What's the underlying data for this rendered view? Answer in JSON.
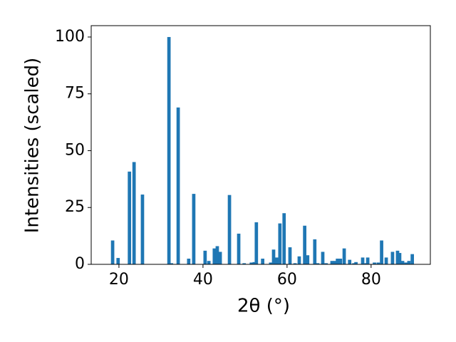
{
  "chart_data": {
    "type": "bar",
    "xlabel": "2θ (°)",
    "ylabel": "Intensities (scaled)",
    "x": [
      18.5,
      19.8,
      22.5,
      23.6,
      25.6,
      31.9,
      32.5,
      34.1,
      36.6,
      37.8,
      40.5,
      41.4,
      42.7,
      43.4,
      44.1,
      46.3,
      48.5,
      49.8,
      51.5,
      52.2,
      52.7,
      54.2,
      56.1,
      56.8,
      57.5,
      58.3,
      59.3,
      60.7,
      61.9,
      62.9,
      64.2,
      64.9,
      66.6,
      67.3,
      68.5,
      69.3,
      70.7,
      71.4,
      72.0,
      72.7,
      73.6,
      74.9,
      75.9,
      76.4,
      78.0,
      78.8,
      79.2,
      80.8,
      81.7,
      82.5,
      83.6,
      85.1,
      86.3,
      86.8,
      87.5,
      88.3,
      89.0,
      89.8
    ],
    "values": [
      10.5,
      2.8,
      40.8,
      45,
      30.7,
      100,
      0.5,
      69,
      2.5,
      31,
      6,
      1.5,
      7,
      8,
      5.5,
      30.5,
      13.5,
      0.5,
      0.8,
      1,
      18.5,
      2.5,
      0.8,
      6.5,
      3,
      18,
      22.5,
      7.5,
      0.5,
      3.5,
      17,
      4,
      11,
      0.5,
      5.5,
      0.5,
      1.5,
      1.5,
      2.5,
      2.5,
      7,
      2,
      0.5,
      1,
      3,
      0.5,
      3,
      0.8,
      0.8,
      10.5,
      3,
      5.5,
      6,
      5,
      1.5,
      0.8,
      1.5,
      4.5
    ],
    "color": "#1f77b4",
    "xlim": [
      13.4,
      94.1
    ],
    "xticks": [
      20,
      40,
      60,
      80
    ],
    "ylim": [
      0,
      105
    ],
    "yticks": [
      0,
      25,
      50,
      75,
      100
    ]
  }
}
